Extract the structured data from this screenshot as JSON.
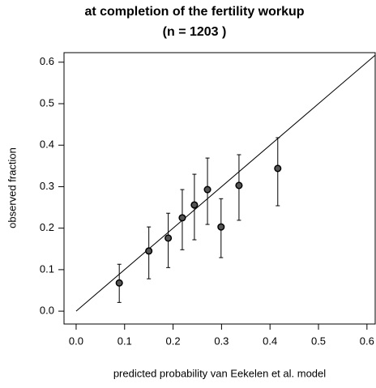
{
  "chart_data": {
    "type": "scatter",
    "title": "at completion of the fertility workup",
    "subtitle": "(n = 1203 )",
    "x_label": "predicted probability van Eekelen et al. model",
    "y_label": "observed fraction",
    "x": [
      0.089,
      0.15,
      0.19,
      0.219,
      0.244,
      0.271,
      0.299,
      0.336,
      0.416
    ],
    "y": [
      0.068,
      0.145,
      0.176,
      0.225,
      0.256,
      0.293,
      0.203,
      0.303,
      0.344
    ],
    "lower": [
      0.021,
      0.078,
      0.105,
      0.148,
      0.172,
      0.209,
      0.129,
      0.219,
      0.254
    ],
    "upper": [
      0.113,
      0.203,
      0.236,
      0.293,
      0.33,
      0.369,
      0.271,
      0.377,
      0.418
    ],
    "color": "#000000",
    "xlim": [
      -0.025,
      0.617
    ],
    "ylim": [
      -0.031,
      0.623
    ],
    "xticks": [
      {
        "value": 0,
        "label": "0.0"
      },
      0.1,
      0.2,
      0.3,
      0.4,
      0.5,
      0.6
    ],
    "yticks": [
      {
        "value": 0,
        "label": "0.0"
      },
      0.1,
      0.2,
      0.3,
      0.4,
      0.5,
      0.6
    ],
    "diagonal": true
  }
}
